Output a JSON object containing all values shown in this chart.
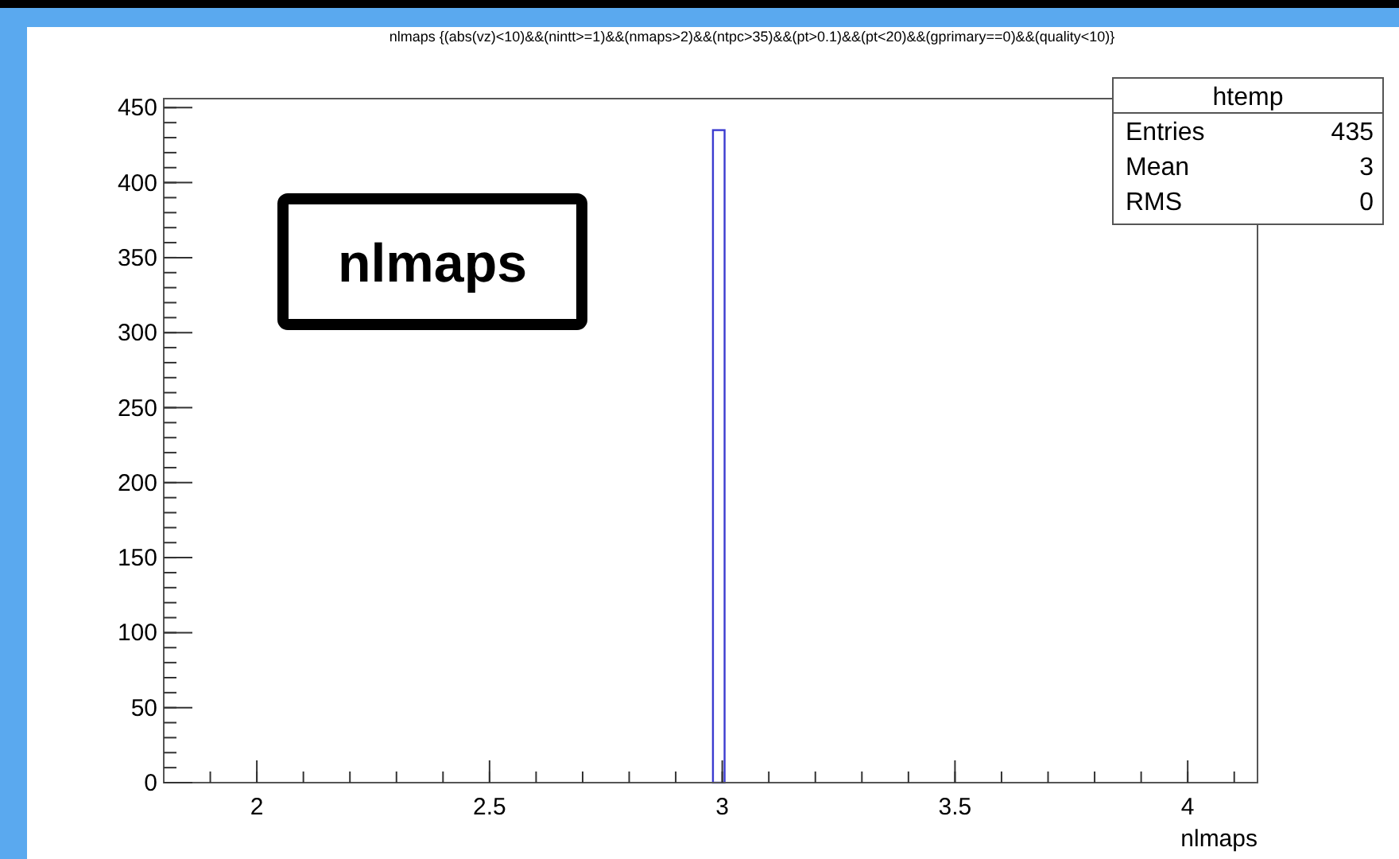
{
  "chart_data": {
    "type": "histogram",
    "title": "nlmaps {(abs(vz)<10)&&(nintt>=1)&&(nmaps>2)&&(ntpc>35)&&(pt>0.1)&&(pt<20)&&(gprimary==0)&&(quality<10)}",
    "xlabel": "nlmaps",
    "bins": [
      2.98,
      3.005
    ],
    "values": [
      435
    ],
    "color": "#3b3bd0",
    "xlim": [
      1.8,
      4.15
    ],
    "xticks": [
      2,
      2.5,
      3,
      3.5,
      4
    ],
    "ylim": [
      0,
      456
    ],
    "yticks": [
      0,
      50,
      100,
      150,
      200,
      250,
      300,
      350,
      400,
      450
    ],
    "grid": false,
    "annotations": [
      "nlmaps",
      "htemp",
      "Entries",
      "435",
      "Mean",
      "3",
      "RMS",
      "0"
    ]
  }
}
